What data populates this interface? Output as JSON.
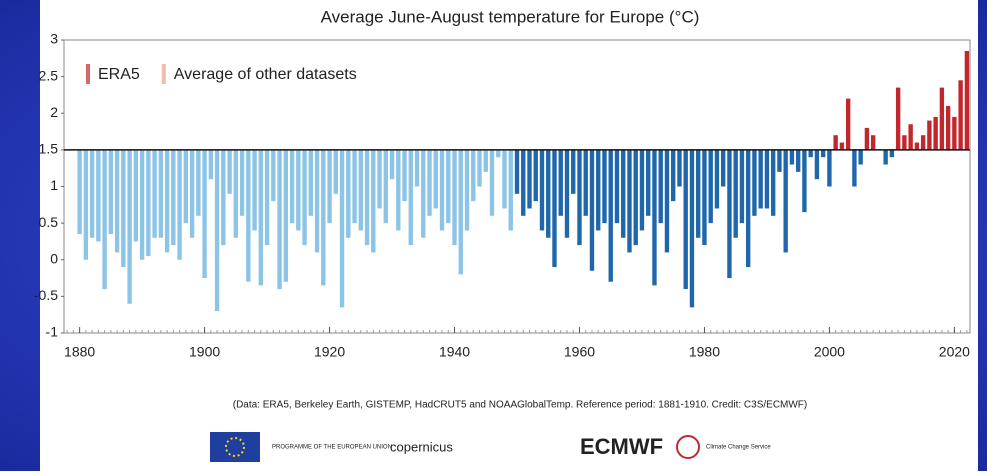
{
  "chart_data": {
    "type": "bar",
    "title": "Average June-August temperature for Europe (°C)",
    "baseline": 1.5,
    "xlim": [
      1877.5,
      2022.5
    ],
    "xticks": [
      1880,
      1900,
      1920,
      1940,
      1960,
      1980,
      2000,
      2020
    ],
    "ylim": [
      -1,
      3
    ],
    "yticks": [
      -1,
      -0.5,
      0,
      0.5,
      1,
      1.5,
      2,
      2.5,
      3
    ],
    "grid": false,
    "legend": "top-left",
    "series": [
      {
        "name": "ERA5",
        "color": "#c0282d",
        "color_below": "#1f66aa",
        "x": [
          1950,
          1951,
          1952,
          1953,
          1954,
          1955,
          1956,
          1957,
          1958,
          1959,
          1960,
          1961,
          1962,
          1963,
          1964,
          1965,
          1966,
          1967,
          1968,
          1969,
          1970,
          1971,
          1972,
          1973,
          1974,
          1975,
          1976,
          1977,
          1978,
          1979,
          1980,
          1981,
          1982,
          1983,
          1984,
          1985,
          1986,
          1987,
          1988,
          1989,
          1990,
          1991,
          1992,
          1993,
          1994,
          1995,
          1996,
          1997,
          1998,
          1999,
          2000,
          2001,
          2002,
          2003,
          2004,
          2005,
          2006,
          2007,
          2008,
          2009,
          2010,
          2011,
          2012,
          2013,
          2014,
          2015,
          2016,
          2017,
          2018,
          2019,
          2020,
          2021,
          2022
        ],
        "values": [
          0.9,
          0.6,
          0.7,
          0.8,
          0.4,
          0.3,
          -0.1,
          0.6,
          0.3,
          0.9,
          0.2,
          0.6,
          -0.15,
          0.4,
          0.5,
          -0.3,
          0.5,
          0.3,
          0.1,
          0.2,
          0.4,
          0.6,
          -0.35,
          0.5,
          0.1,
          0.8,
          1.0,
          -0.4,
          -0.65,
          0.3,
          0.2,
          0.5,
          0.7,
          1.0,
          -0.25,
          0.3,
          0.5,
          -0.1,
          0.6,
          0.7,
          0.7,
          0.6,
          1.2,
          0.1,
          1.3,
          1.2,
          0.65,
          1.4,
          1.1,
          1.4,
          1.0,
          1.7,
          1.6,
          2.2,
          1.0,
          1.3,
          1.8,
          1.7,
          1.5,
          1.3,
          1.4,
          2.35,
          1.7,
          1.85,
          1.6,
          1.7,
          1.9,
          1.95,
          2.35,
          2.1,
          1.95,
          2.45,
          2.85
        ]
      },
      {
        "name": "Average of other datasets",
        "color": "#e8a08a",
        "color_below": "#8cc4e6",
        "x": [
          1880,
          1881,
          1882,
          1883,
          1884,
          1885,
          1886,
          1887,
          1888,
          1889,
          1890,
          1891,
          1892,
          1893,
          1894,
          1895,
          1896,
          1897,
          1898,
          1899,
          1900,
          1901,
          1902,
          1903,
          1904,
          1905,
          1906,
          1907,
          1908,
          1909,
          1910,
          1911,
          1912,
          1913,
          1914,
          1915,
          1916,
          1917,
          1918,
          1919,
          1920,
          1921,
          1922,
          1923,
          1924,
          1925,
          1926,
          1927,
          1928,
          1929,
          1930,
          1931,
          1932,
          1933,
          1934,
          1935,
          1936,
          1937,
          1938,
          1939,
          1940,
          1941,
          1942,
          1943,
          1944,
          1945,
          1946,
          1947,
          1948,
          1949
        ],
        "values": [
          0.35,
          0.0,
          0.3,
          0.25,
          -0.4,
          0.35,
          0.1,
          -0.1,
          -0.6,
          0.25,
          0.0,
          0.05,
          0.3,
          0.3,
          0.1,
          0.2,
          0.0,
          0.5,
          0.3,
          0.6,
          -0.25,
          1.1,
          -0.7,
          0.2,
          0.9,
          0.3,
          0.6,
          -0.3,
          0.4,
          -0.35,
          0.2,
          0.8,
          -0.4,
          -0.3,
          0.5,
          0.4,
          0.2,
          0.6,
          0.1,
          -0.35,
          0.5,
          0.9,
          -0.65,
          0.3,
          0.5,
          0.4,
          0.2,
          0.1,
          0.7,
          0.5,
          1.1,
          0.4,
          0.8,
          0.2,
          1.0,
          0.3,
          0.6,
          0.7,
          0.4,
          0.5,
          0.2,
          -0.2,
          0.4,
          0.8,
          1.0,
          1.2,
          0.6,
          1.4,
          0.7,
          0.4
        ]
      }
    ]
  },
  "footer": {
    "note": "(Data: ERA5, Berkeley Earth, GISTEMP, HadCRUT5 and NOAAGlobalTemp. Reference period: 1881-1910. Credit: C3S/ECMWF)",
    "logos": [
      "PROGRAMME OF THE EUROPEAN UNION",
      "copernicus",
      "ECMWF",
      "Climate Change Service"
    ]
  }
}
